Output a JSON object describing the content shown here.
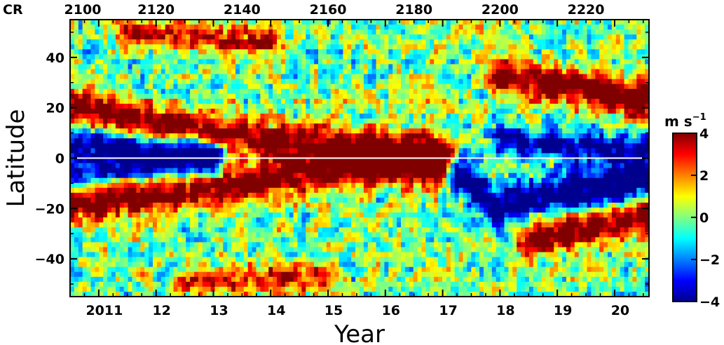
{
  "chart_data": {
    "type": "heatmap",
    "title": "",
    "xlabel": "Year",
    "ylabel": "Latitude",
    "x_range": [
      2010.5,
      2020.6
    ],
    "y_range": [
      -55,
      55
    ],
    "x_ticks": [
      {
        "value": 2011,
        "label": "2011"
      },
      {
        "value": 2012,
        "label": "12"
      },
      {
        "value": 2013,
        "label": "13"
      },
      {
        "value": 2014,
        "label": "14"
      },
      {
        "value": 2015,
        "label": "15"
      },
      {
        "value": 2016,
        "label": "16"
      },
      {
        "value": 2017,
        "label": "17"
      },
      {
        "value": 2018,
        "label": "18"
      },
      {
        "value": 2019,
        "label": "19"
      },
      {
        "value": 2020,
        "label": "20"
      }
    ],
    "y_ticks": [
      {
        "value": 40,
        "label": "40"
      },
      {
        "value": 20,
        "label": "20"
      },
      {
        "value": 0,
        "label": "0"
      },
      {
        "value": -20,
        "label": "−20"
      },
      {
        "value": -40,
        "label": "−40"
      }
    ],
    "top_axis": {
      "prefix": "CR",
      "ticks": [
        {
          "year": 2010.5,
          "label": "2100"
        },
        {
          "year": 2012.0,
          "label": "2120"
        },
        {
          "year": 2013.5,
          "label": "2140"
        },
        {
          "year": 2015.0,
          "label": "2160"
        },
        {
          "year": 2016.5,
          "label": "2180"
        },
        {
          "year": 2018.0,
          "label": "2200"
        },
        {
          "year": 2019.5,
          "label": "2220"
        }
      ]
    },
    "zero_line": {
      "latitude": 0,
      "color": "#ffffff"
    },
    "colorbar": {
      "label": "m s",
      "label_exponent": "−1",
      "range": [
        -4,
        4
      ],
      "ticks": [
        {
          "value": 4,
          "label": "4"
        },
        {
          "value": 2,
          "label": "2"
        },
        {
          "value": 0,
          "label": "0"
        },
        {
          "value": -2,
          "label": "−2"
        },
        {
          "value": -4,
          "label": "−4"
        }
      ],
      "colormap": [
        "#00008f",
        "#0000ff",
        "#0080ff",
        "#00ffff",
        "#80ff80",
        "#ffff00",
        "#ff8000",
        "#ff0000",
        "#800000"
      ]
    },
    "bands": [
      {
        "name": "northern-positive",
        "sign": 1,
        "amplitude": 5,
        "path": [
          [
            2010.5,
            20
          ],
          [
            2012.0,
            14
          ],
          [
            2014.0,
            7
          ],
          [
            2016.0,
            4
          ],
          [
            2017.0,
            3
          ]
        ],
        "width": 7
      },
      {
        "name": "northern-negative",
        "sign": -1,
        "amplitude": 4.5,
        "path": [
          [
            2010.5,
            7
          ],
          [
            2012.0,
            3
          ],
          [
            2013.0,
            1
          ]
        ],
        "width": 6
      },
      {
        "name": "southern-positive",
        "sign": 1,
        "amplitude": 5,
        "path": [
          [
            2010.5,
            -18
          ],
          [
            2012.5,
            -13
          ],
          [
            2014.0,
            -8
          ],
          [
            2015.5,
            -5
          ],
          [
            2017.0,
            -3
          ]
        ],
        "width": 7
      },
      {
        "name": "southern-negative",
        "sign": -1,
        "amplitude": 4,
        "path": [
          [
            2010.5,
            -5
          ],
          [
            2012.0,
            -3
          ],
          [
            2013.0,
            -1
          ]
        ],
        "width": 6
      },
      {
        "name": "new-cycle-north-positive",
        "sign": 1,
        "amplitude": 5,
        "path": [
          [
            2018.0,
            32
          ],
          [
            2019.0,
            29
          ],
          [
            2019.8,
            26
          ],
          [
            2020.6,
            22
          ]
        ],
        "width": 7
      },
      {
        "name": "new-cycle-north-negative",
        "sign": -1,
        "amplitude": 4,
        "path": [
          [
            2018.0,
            8
          ],
          [
            2019.0,
            5
          ],
          [
            2020.6,
            3
          ]
        ],
        "width": 6
      },
      {
        "name": "new-cycle-south-negative",
        "sign": -1,
        "amplitude": 5,
        "path": [
          [
            2017.2,
            -5
          ],
          [
            2018.0,
            -20
          ],
          [
            2019.0,
            -14
          ],
          [
            2020.0,
            -11
          ],
          [
            2020.6,
            -8
          ]
        ],
        "width": 8
      },
      {
        "name": "new-cycle-south-positive",
        "sign": 1,
        "amplitude": 5,
        "path": [
          [
            2018.5,
            -32
          ],
          [
            2019.5,
            -28
          ],
          [
            2020.6,
            -22
          ]
        ],
        "width": 7
      },
      {
        "name": "high-lat-north-positive",
        "sign": 1,
        "amplitude": 3.5,
        "path": [
          [
            2011.5,
            50
          ],
          [
            2013.0,
            48
          ],
          [
            2014.0,
            46
          ]
        ],
        "width": 5
      },
      {
        "name": "high-lat-south-positive",
        "sign": 1,
        "amplitude": 3.5,
        "path": [
          [
            2012.5,
            -50
          ],
          [
            2014.0,
            -48
          ],
          [
            2015.0,
            -47
          ]
        ],
        "width": 5
      }
    ]
  }
}
